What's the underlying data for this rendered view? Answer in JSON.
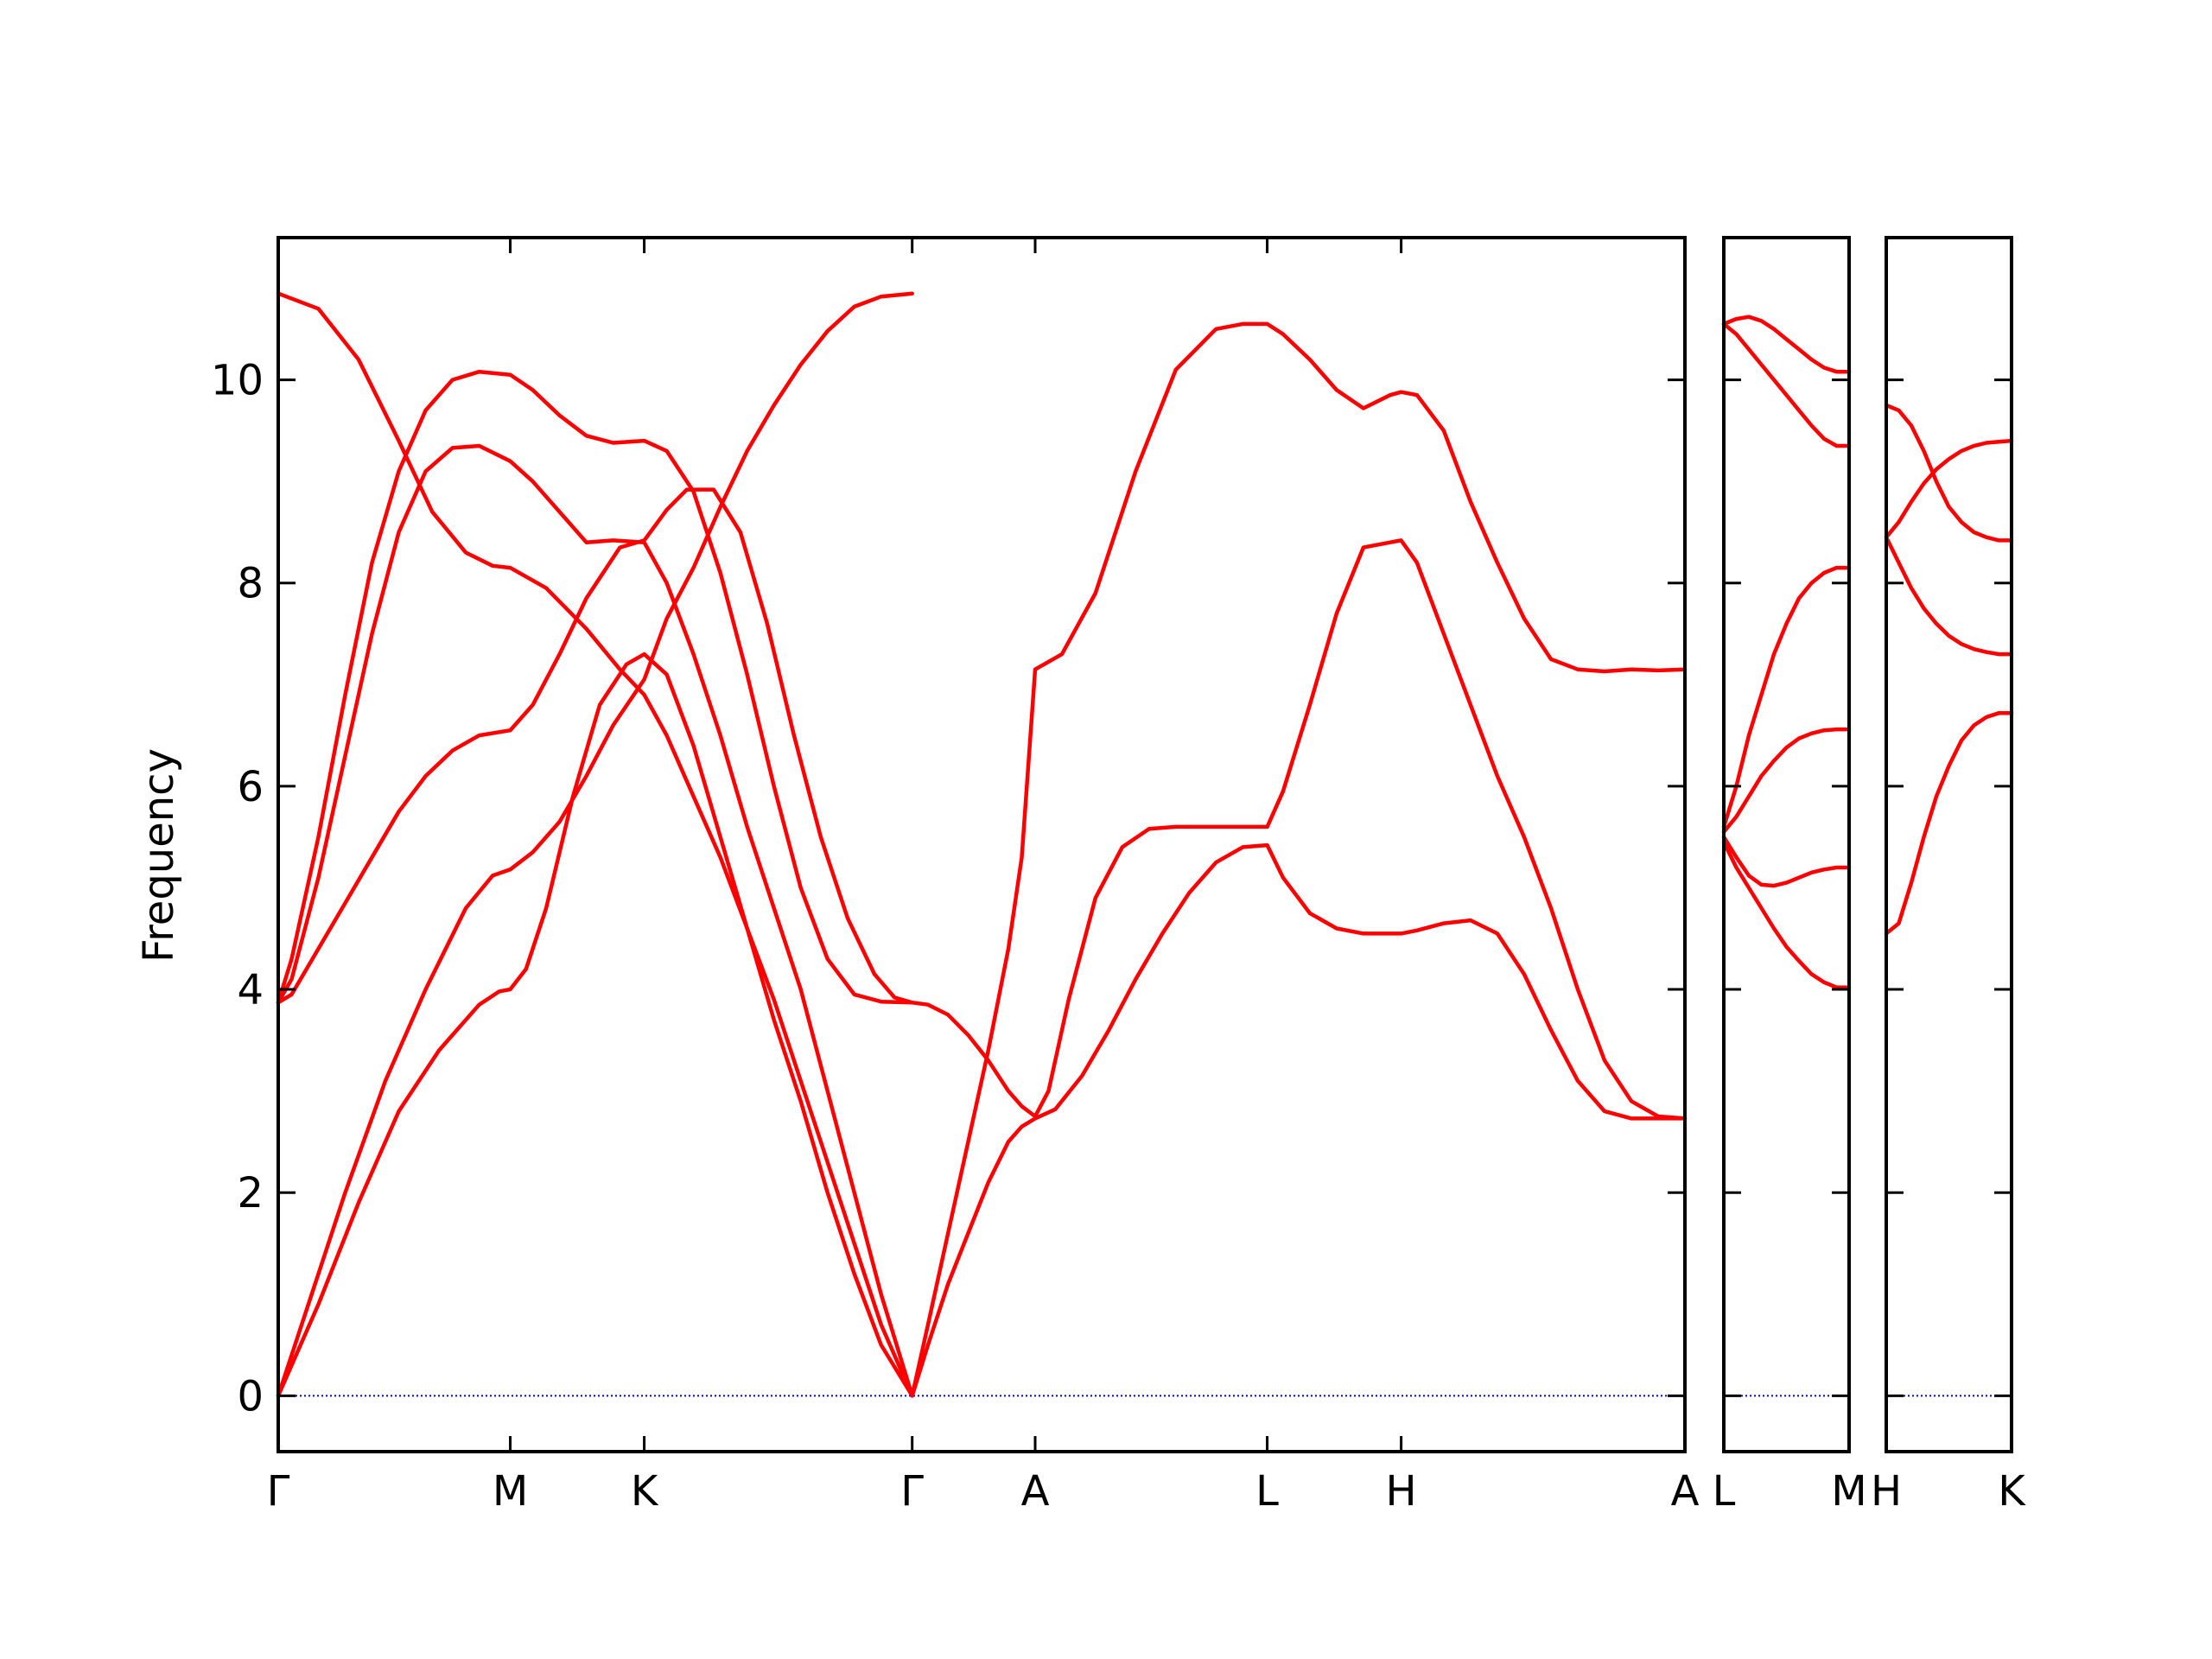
{
  "chart_data": {
    "type": "line",
    "ylabel": "Frequency",
    "ylim": [
      -0.55,
      11.4
    ],
    "yticks": [
      0,
      2,
      4,
      6,
      8,
      10
    ],
    "ytick_labels": [
      "0",
      "2",
      "4",
      "6",
      "8",
      "10"
    ],
    "grid": false,
    "line_color": "#ff0000",
    "zero_line_color": "#0000cc",
    "x_labels": [
      "Γ",
      "M",
      "K",
      "Γ",
      "A",
      "L",
      "H",
      "A",
      "L",
      "M",
      "H",
      "K"
    ],
    "panels": [
      {
        "xlim": [
          0,
          10.5
        ],
        "ticks": [
          {
            "x": 0,
            "label": "Γ"
          },
          {
            "x": 1.732,
            "label": "M"
          },
          {
            "x": 2.732,
            "label": "K"
          },
          {
            "x": 4.732,
            "label": "Γ"
          },
          {
            "x": 5.65,
            "label": "A"
          },
          {
            "x": 7.382,
            "label": "L"
          },
          {
            "x": 8.382,
            "label": "H"
          },
          {
            "x": 10.5,
            "label": "A"
          }
        ],
        "series": [
          {
            "x": [
              0,
              0.3,
              0.6,
              0.9,
              1.15,
              1.4,
              1.6,
              1.732,
              2.0,
              2.3,
              2.55,
              2.732,
              2.9,
              3.1,
              3.3,
              3.5,
              3.7,
              3.9,
              4.1,
              4.3,
              4.5,
              4.732
            ],
            "y": [
              10.85,
              10.7,
              10.2,
              9.4,
              8.7,
              8.3,
              8.17,
              8.15,
              7.95,
              7.55,
              7.15,
              6.9,
              6.5,
              5.9,
              5.3,
              4.6,
              3.9,
              3.1,
              2.3,
              1.5,
              0.7,
              0.0
            ]
          },
          {
            "x": [
              0,
              0.1,
              0.3,
              0.5,
              0.7,
              0.9,
              1.1,
              1.3,
              1.5,
              1.732,
              1.9,
              2.1,
              2.3,
              2.5,
              2.732,
              2.9,
              3.1,
              3.3,
              3.5,
              3.7,
              3.9,
              4.1,
              4.3,
              4.5,
              4.732
            ],
            "y": [
              3.87,
              4.3,
              5.5,
              6.9,
              8.2,
              9.1,
              9.7,
              10.0,
              10.08,
              10.05,
              9.9,
              9.65,
              9.45,
              9.38,
              9.4,
              9.3,
              8.9,
              8.1,
              7.1,
              6.0,
              5.0,
              4.3,
              3.95,
              3.88,
              3.87
            ]
          },
          {
            "x": [
              0,
              0.1,
              0.3,
              0.5,
              0.7,
              0.9,
              1.1,
              1.3,
              1.5,
              1.732,
              1.9,
              2.1,
              2.3,
              2.5,
              2.732,
              2.9,
              3.1,
              3.3,
              3.5,
              3.7,
              3.9,
              4.1,
              4.3,
              4.5,
              4.732
            ],
            "y": [
              3.87,
              4.1,
              5.1,
              6.3,
              7.5,
              8.5,
              9.1,
              9.33,
              9.35,
              9.2,
              9.0,
              8.7,
              8.4,
              8.42,
              8.4,
              8.0,
              7.3,
              6.5,
              5.6,
              4.8,
              4.0,
              3.0,
              2.0,
              1.0,
              0.0
            ]
          },
          {
            "x": [
              0,
              0.1,
              0.3,
              0.5,
              0.7,
              0.9,
              1.1,
              1.3,
              1.5,
              1.732,
              1.9,
              2.1,
              2.3,
              2.55,
              2.732,
              2.9,
              3.05,
              3.25,
              3.45,
              3.65,
              3.85,
              4.05,
              4.25,
              4.45,
              4.6,
              4.732
            ],
            "y": [
              3.87,
              3.95,
              4.4,
              4.85,
              5.3,
              5.75,
              6.1,
              6.35,
              6.5,
              6.55,
              6.8,
              7.3,
              7.85,
              8.35,
              8.42,
              8.72,
              8.92,
              8.92,
              8.5,
              7.6,
              6.5,
              5.5,
              4.7,
              4.15,
              3.92,
              3.87
            ]
          },
          {
            "x": [
              0,
              0.2,
              0.5,
              0.8,
              1.1,
              1.4,
              1.6,
              1.732,
              1.9,
              2.1,
              2.3,
              2.5,
              2.732,
              2.9,
              3.1,
              3.3,
              3.5,
              3.7,
              3.9,
              4.1,
              4.3,
              4.5,
              4.732
            ],
            "y": [
              0.0,
              0.8,
              2.0,
              3.1,
              4.0,
              4.8,
              5.12,
              5.18,
              5.35,
              5.65,
              6.1,
              6.6,
              7.05,
              7.65,
              8.15,
              8.75,
              9.3,
              9.75,
              10.15,
              10.48,
              10.72,
              10.82,
              10.85
            ]
          },
          {
            "x": [
              0,
              0.3,
              0.6,
              0.9,
              1.2,
              1.5,
              1.65,
              1.732,
              1.85,
              2.0,
              2.2,
              2.4,
              2.6,
              2.732,
              2.9,
              3.1,
              3.3,
              3.5,
              3.7,
              3.9,
              4.1,
              4.3,
              4.5,
              4.732
            ],
            "y": [
              0.0,
              0.9,
              1.9,
              2.8,
              3.4,
              3.85,
              3.98,
              4.0,
              4.2,
              4.8,
              5.9,
              6.8,
              7.2,
              7.3,
              7.1,
              6.4,
              5.5,
              4.6,
              3.7,
              2.9,
              2.0,
              1.2,
              0.5,
              0.0
            ]
          },
          {
            "x": [
              4.732,
              4.85,
              5.0,
              5.15,
              5.3,
              5.45,
              5.55,
              5.65,
              5.85,
              6.1,
              6.4,
              6.7,
              7.0,
              7.2,
              7.382,
              7.5,
              7.7,
              7.9,
              8.1,
              8.3,
              8.382,
              8.5,
              8.7,
              8.9,
              9.1,
              9.3,
              9.5,
              9.7,
              9.9,
              10.1,
              10.3,
              10.5
            ],
            "y": [
              0.0,
              0.7,
              1.6,
              2.5,
              3.4,
              4.4,
              5.3,
              7.15,
              7.3,
              7.9,
              9.1,
              10.1,
              10.5,
              10.55,
              10.55,
              10.45,
              10.2,
              9.9,
              9.72,
              9.85,
              9.88,
              9.85,
              9.5,
              8.8,
              8.2,
              7.65,
              7.25,
              7.15,
              7.13,
              7.15,
              7.14,
              7.15
            ]
          },
          {
            "x": [
              4.732,
              4.85,
              5.0,
              5.15,
              5.3,
              5.45,
              5.55,
              5.65,
              5.75,
              5.9,
              6.1,
              6.3,
              6.5,
              6.7,
              6.9,
              7.1,
              7.3,
              7.382,
              7.5,
              7.7,
              7.9,
              8.1,
              8.3,
              8.382,
              8.5,
              8.7,
              8.9,
              9.1,
              9.3,
              9.5,
              9.7,
              9.9,
              10.1,
              10.3,
              10.5
            ],
            "y": [
              3.87,
              3.85,
              3.75,
              3.55,
              3.3,
              3.0,
              2.85,
              2.75,
              3.0,
              3.9,
              4.9,
              5.4,
              5.58,
              5.6,
              5.6,
              5.6,
              5.6,
              5.6,
              5.95,
              6.8,
              7.7,
              8.35,
              8.4,
              8.42,
              8.2,
              7.5,
              6.8,
              6.1,
              5.5,
              4.8,
              4.0,
              3.3,
              2.9,
              2.75,
              2.73
            ]
          },
          {
            "x": [
              4.732,
              4.85,
              5.0,
              5.15,
              5.3,
              5.45,
              5.55,
              5.65,
              5.8,
              6.0,
              6.2,
              6.4,
              6.6,
              6.8,
              7.0,
              7.2,
              7.382,
              7.5,
              7.7,
              7.9,
              8.1,
              8.3,
              8.382,
              8.5,
              8.7,
              8.9,
              9.1,
              9.3,
              9.5,
              9.7,
              9.9,
              10.1,
              10.3,
              10.5
            ],
            "y": [
              0.0,
              0.5,
              1.1,
              1.6,
              2.1,
              2.5,
              2.65,
              2.73,
              2.82,
              3.15,
              3.6,
              4.1,
              4.55,
              4.95,
              5.25,
              5.4,
              5.42,
              5.1,
              4.75,
              4.6,
              4.55,
              4.55,
              4.55,
              4.58,
              4.65,
              4.68,
              4.55,
              4.15,
              3.6,
              3.1,
              2.8,
              2.73,
              2.73,
              2.73
            ]
          }
        ]
      },
      {
        "xlim": [
          0,
          1.0
        ],
        "ticks": [
          {
            "x": 0,
            "label": "L"
          },
          {
            "x": 1.0,
            "label": "M"
          }
        ],
        "series": [
          {
            "x": [
              0,
              0.1,
              0.2,
              0.3,
              0.4,
              0.5,
              0.6,
              0.7,
              0.8,
              0.9,
              1.0
            ],
            "y": [
              10.55,
              10.6,
              10.62,
              10.58,
              10.5,
              10.4,
              10.3,
              10.2,
              10.12,
              10.08,
              10.08
            ]
          },
          {
            "x": [
              0,
              0.1,
              0.2,
              0.3,
              0.4,
              0.5,
              0.6,
              0.7,
              0.8,
              0.9,
              1.0
            ],
            "y": [
              10.55,
              10.45,
              10.3,
              10.15,
              10.0,
              9.85,
              9.7,
              9.55,
              9.42,
              9.35,
              9.35
            ]
          },
          {
            "x": [
              0,
              0.1,
              0.2,
              0.3,
              0.4,
              0.5,
              0.6,
              0.7,
              0.8,
              0.9,
              1.0
            ],
            "y": [
              5.6,
              6.0,
              6.5,
              6.9,
              7.3,
              7.6,
              7.85,
              8.0,
              8.1,
              8.15,
              8.15
            ]
          },
          {
            "x": [
              0,
              0.1,
              0.2,
              0.3,
              0.4,
              0.5,
              0.6,
              0.7,
              0.8,
              0.9,
              1.0
            ],
            "y": [
              5.55,
              5.7,
              5.9,
              6.1,
              6.25,
              6.38,
              6.47,
              6.52,
              6.55,
              6.56,
              6.56
            ]
          },
          {
            "x": [
              0,
              0.1,
              0.2,
              0.3,
              0.4,
              0.5,
              0.6,
              0.7,
              0.8,
              0.9,
              1.0
            ],
            "y": [
              5.5,
              5.3,
              5.12,
              5.03,
              5.02,
              5.05,
              5.1,
              5.15,
              5.18,
              5.2,
              5.2
            ]
          },
          {
            "x": [
              0,
              0.1,
              0.2,
              0.3,
              0.4,
              0.5,
              0.6,
              0.7,
              0.8,
              0.9,
              1.0
            ],
            "y": [
              5.45,
              5.2,
              5.0,
              4.8,
              4.6,
              4.42,
              4.28,
              4.15,
              4.07,
              4.02,
              4.02
            ]
          }
        ]
      },
      {
        "xlim": [
          0,
          1.0
        ],
        "ticks": [
          {
            "x": 0,
            "label": "H"
          },
          {
            "x": 1.0,
            "label": "K"
          }
        ],
        "series": [
          {
            "x": [
              0,
              0.1,
              0.2,
              0.3,
              0.4,
              0.5,
              0.6,
              0.7,
              0.8,
              0.9,
              1.0
            ],
            "y": [
              9.75,
              9.7,
              9.55,
              9.3,
              9.0,
              8.75,
              8.6,
              8.5,
              8.45,
              8.42,
              8.42
            ]
          },
          {
            "x": [
              0,
              0.1,
              0.2,
              0.3,
              0.4,
              0.5,
              0.6,
              0.7,
              0.8,
              0.9,
              1.0
            ],
            "y": [
              8.45,
              8.6,
              8.8,
              8.98,
              9.12,
              9.22,
              9.3,
              9.35,
              9.38,
              9.39,
              9.4
            ]
          },
          {
            "x": [
              0,
              0.1,
              0.2,
              0.3,
              0.4,
              0.5,
              0.6,
              0.7,
              0.8,
              0.9,
              1.0
            ],
            "y": [
              8.45,
              8.2,
              7.95,
              7.75,
              7.6,
              7.48,
              7.4,
              7.35,
              7.32,
              7.3,
              7.3
            ]
          },
          {
            "x": [
              0,
              0.1,
              0.2,
              0.3,
              0.4,
              0.5,
              0.6,
              0.7,
              0.8,
              0.9,
              1.0
            ],
            "y": [
              4.55,
              4.65,
              5.05,
              5.5,
              5.9,
              6.2,
              6.45,
              6.6,
              6.68,
              6.72,
              6.72
            ]
          }
        ]
      }
    ]
  }
}
